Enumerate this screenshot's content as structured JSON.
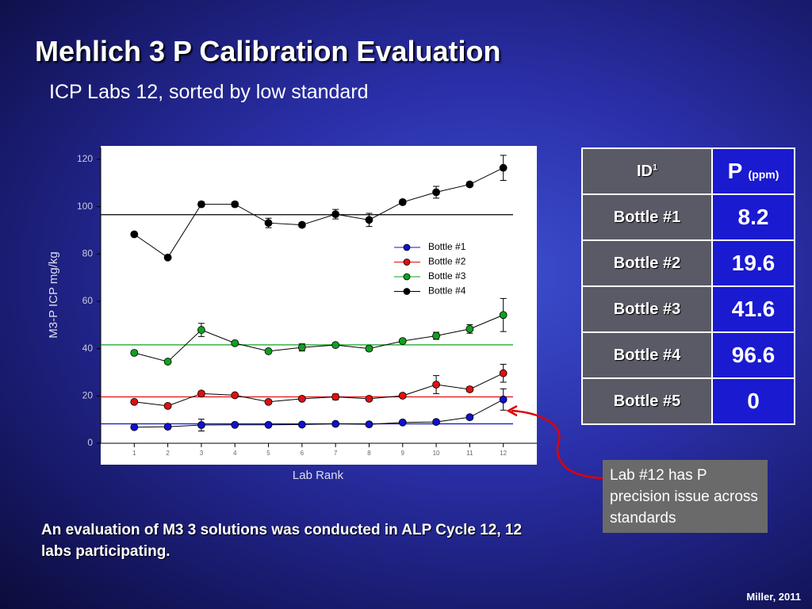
{
  "title": "Mehlich 3 P Calibration Evaluation",
  "subtitle": "ICP Labs 12, sorted by low standard",
  "chart_data": {
    "type": "line",
    "x_label": "Lab Rank",
    "y_label": "M3-P ICP mg/kg",
    "x": [
      1,
      2,
      3,
      4,
      5,
      6,
      7,
      8,
      9,
      10,
      11,
      12
    ],
    "xlim": [
      0,
      13
    ],
    "xticks": [
      1,
      2,
      3,
      4,
      5,
      6,
      7,
      8,
      9,
      10,
      11,
      12
    ],
    "ylim": [
      0,
      125
    ],
    "yticks": [
      0,
      20,
      40,
      60,
      80,
      100,
      120
    ],
    "series": [
      {
        "name": "Bottle #1",
        "color": "#1010d0",
        "values": [
          6.8,
          7.0,
          7.7,
          7.8,
          7.8,
          7.9,
          8.2,
          8.0,
          8.8,
          9.0,
          11.0,
          18.5
        ],
        "errors": [
          0.6,
          0.6,
          2.5,
          0.6,
          0.6,
          0.6,
          0.6,
          0.6,
          0.6,
          0.8,
          1.0,
          4.5
        ]
      },
      {
        "name": "Bottle #2",
        "color": "#e01010",
        "values": [
          17.5,
          15.8,
          21.0,
          20.3,
          17.5,
          18.8,
          19.6,
          18.8,
          20.1,
          24.8,
          22.8,
          29.6
        ],
        "errors": [
          0.6,
          0.6,
          1.0,
          0.8,
          0.8,
          0.6,
          1.2,
          0.6,
          0.6,
          3.8,
          1.0,
          3.8
        ]
      },
      {
        "name": "Bottle #3",
        "color": "#10a020",
        "values": [
          38.2,
          34.5,
          47.9,
          42.3,
          38.9,
          40.5,
          41.5,
          40.0,
          43.2,
          45.4,
          48.3,
          54.2
        ],
        "errors": [
          0.6,
          0.6,
          2.8,
          0.8,
          0.6,
          1.5,
          0.8,
          1.0,
          0.8,
          1.5,
          1.8,
          7.0
        ]
      },
      {
        "name": "Bottle #4",
        "color": "#000000",
        "values": [
          88.3,
          78.5,
          101.0,
          101.0,
          93.1,
          92.3,
          96.8,
          94.4,
          101.9,
          106.1,
          109.4,
          116.4
        ],
        "errors": [
          0.6,
          0.6,
          1.0,
          1.0,
          2.0,
          1.0,
          2.0,
          2.8,
          1.0,
          2.5,
          1.0,
          5.3
        ]
      }
    ]
  },
  "table": {
    "header": {
      "id": "ID",
      "id_sup": "1",
      "p": "P",
      "p_unit": "(ppm)"
    },
    "rows": [
      [
        "Bottle #1",
        8.2
      ],
      [
        "Bottle #2",
        19.6
      ],
      [
        "Bottle #3",
        41.6
      ],
      [
        "Bottle #4",
        96.6
      ],
      [
        "Bottle #5",
        0
      ]
    ]
  },
  "callout": "Lab #12 has P precision issue across standards",
  "footnote": "An evaluation of M3 3 solutions was conducted in ALP Cycle 12, 12 labs participating.",
  "credit": "Miller, 2011"
}
